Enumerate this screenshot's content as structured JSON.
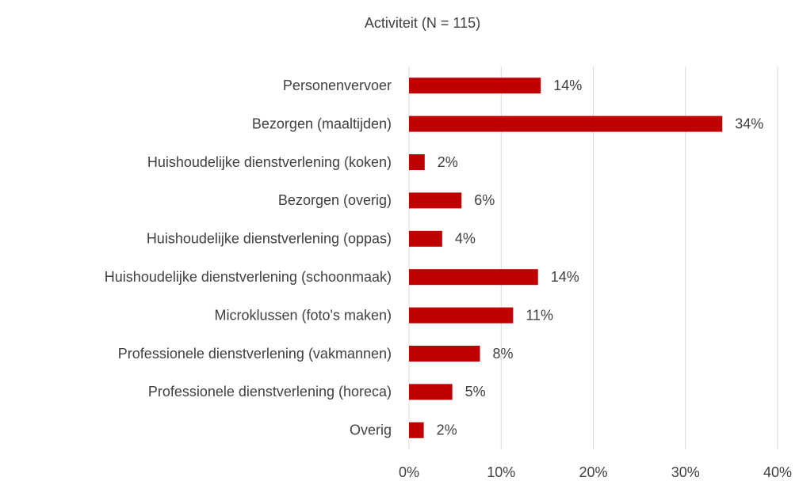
{
  "chart_data": {
    "type": "bar",
    "orientation": "horizontal",
    "title": "Activiteit (N = 115)",
    "categories": [
      "Personenvervoer",
      "Bezorgen (maaltijden)",
      "Huishoudelijke dienstverlening (koken)",
      "Bezorgen (overig)",
      "Huishoudelijke dienstverlening (oppas)",
      "Huishoudelijke dienstverlening (schoonmaak)",
      "Microklussen (foto's maken)",
      "Professionele dienstverlening (vakmannen)",
      "Professionele dienstverlening (horeca)",
      "Overig"
    ],
    "values": [
      14.3,
      34.0,
      1.7,
      5.7,
      3.6,
      14.0,
      11.3,
      7.7,
      4.7,
      1.6
    ],
    "value_labels": [
      "14%",
      "34%",
      "2%",
      "6%",
      "4%",
      "14%",
      "11%",
      "8%",
      "5%",
      "2%"
    ],
    "color": "#c00000",
    "xlim": [
      0,
      40
    ],
    "xticks": [
      {
        "value": 0,
        "label": "0%"
      },
      {
        "value": 10,
        "label": "10%"
      },
      {
        "value": 20,
        "label": "20%"
      },
      {
        "value": 30,
        "label": "30%"
      },
      {
        "value": 40,
        "label": "40%"
      }
    ],
    "grid": true
  }
}
